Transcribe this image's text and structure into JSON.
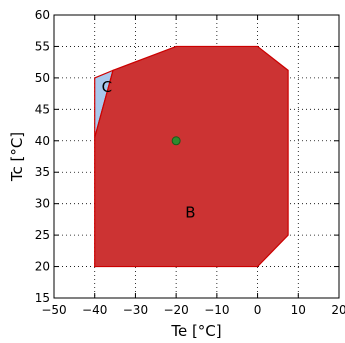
{
  "chart_data": {
    "type": "area",
    "xlabel": "Te [°C]",
    "ylabel": "Tc [°C]",
    "xlim": [
      -50,
      20
    ],
    "ylim": [
      15,
      60
    ],
    "xticks": [
      -50,
      -40,
      -30,
      -20,
      -10,
      0,
      10,
      20
    ],
    "yticks": [
      15,
      20,
      25,
      30,
      35,
      40,
      45,
      50,
      55,
      60
    ],
    "xtick_labels": [
      "−50",
      "−40",
      "−30",
      "−20",
      "−10",
      "0",
      "10",
      "20"
    ],
    "ytick_labels": [
      "15",
      "20",
      "25",
      "30",
      "35",
      "40",
      "45",
      "50",
      "55",
      "60"
    ],
    "grid": true,
    "grid_style": "dotted",
    "regions": [
      {
        "label": "C",
        "label_at": [
          -37,
          48.5
        ],
        "fill": "#a8c8ec",
        "stroke": "#cc0000",
        "points": [
          [
            -40,
            50
          ],
          [
            -35.5,
            51.2
          ],
          [
            -40,
            40.5
          ]
        ]
      },
      {
        "label": "B",
        "label_at": [
          -16.5,
          28.5
        ],
        "fill": "#cc3333",
        "stroke": "#cc0000",
        "points": [
          [
            -40,
            20
          ],
          [
            -40,
            40.5
          ],
          [
            -35.5,
            51.2
          ],
          [
            -20,
            55
          ],
          [
            0,
            55
          ],
          [
            7.5,
            51.2
          ],
          [
            7.5,
            25
          ],
          [
            0,
            20
          ]
        ]
      }
    ],
    "markers": [
      {
        "x": -20,
        "y": 40,
        "color": "#2e8b2e"
      }
    ]
  }
}
